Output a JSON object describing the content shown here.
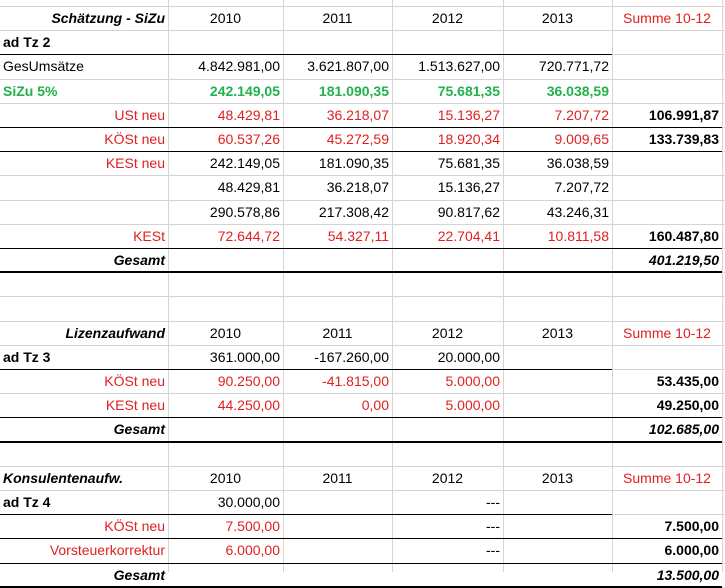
{
  "colors": {
    "red": "#e02020",
    "green": "#22b14c",
    "grid": "#d4d4d4"
  },
  "rows": [
    [
      {
        "c": 0,
        "t": "Schätzung - SiZu",
        "s": "bi",
        "a": "r"
      },
      {
        "c": 1,
        "t": "2010",
        "a": "c"
      },
      {
        "c": 2,
        "t": "2011",
        "a": "c"
      },
      {
        "c": 3,
        "t": "2012",
        "a": "c"
      },
      {
        "c": 4,
        "t": "2013",
        "a": "c"
      },
      {
        "c": 5,
        "t": "Summe 10-12",
        "s": "red",
        "a": "c"
      }
    ],
    [
      {
        "c": 0,
        "t": "ad Tz 2",
        "s": "bold",
        "a": "l"
      }
    ],
    [
      {
        "c": 0,
        "t": "GesUmsätze",
        "a": "l"
      },
      {
        "c": 1,
        "t": "4.842.981,00",
        "a": "r"
      },
      {
        "c": 2,
        "t": "3.621.807,00",
        "a": "r"
      },
      {
        "c": 3,
        "t": "1.513.627,00",
        "a": "r"
      },
      {
        "c": 4,
        "t": "720.771,72",
        "a": "r"
      }
    ],
    [
      {
        "c": 0,
        "t": "SiZu 5%",
        "s": "green",
        "a": "l"
      },
      {
        "c": 1,
        "t": "242.149,05",
        "s": "green",
        "a": "r"
      },
      {
        "c": 2,
        "t": "181.090,35",
        "s": "green",
        "a": "r"
      },
      {
        "c": 3,
        "t": "75.681,35",
        "s": "green",
        "a": "r"
      },
      {
        "c": 4,
        "t": "36.038,59",
        "s": "green",
        "a": "r"
      }
    ],
    [
      {
        "c": 0,
        "t": "USt neu",
        "s": "red",
        "a": "r"
      },
      {
        "c": 1,
        "t": "48.429,81",
        "s": "red",
        "a": "r"
      },
      {
        "c": 2,
        "t": "36.218,07",
        "s": "red",
        "a": "r"
      },
      {
        "c": 3,
        "t": "15.136,27",
        "s": "red",
        "a": "r"
      },
      {
        "c": 4,
        "t": "7.207,72",
        "s": "red",
        "a": "r"
      },
      {
        "c": 5,
        "t": "106.991,87",
        "s": "bold",
        "a": "r"
      }
    ],
    [
      {
        "c": 0,
        "t": "KÖSt neu",
        "s": "red",
        "a": "r"
      },
      {
        "c": 1,
        "t": "60.537,26",
        "s": "red",
        "a": "r"
      },
      {
        "c": 2,
        "t": "45.272,59",
        "s": "red",
        "a": "r"
      },
      {
        "c": 3,
        "t": "18.920,34",
        "s": "red",
        "a": "r"
      },
      {
        "c": 4,
        "t": "9.009,65",
        "s": "red",
        "a": "r"
      },
      {
        "c": 5,
        "t": "133.739,83",
        "s": "bold",
        "a": "r"
      }
    ],
    [
      {
        "c": 0,
        "t": "KESt neu",
        "s": "red",
        "a": "r"
      },
      {
        "c": 1,
        "t": "242.149,05",
        "a": "r"
      },
      {
        "c": 2,
        "t": "181.090,35",
        "a": "r"
      },
      {
        "c": 3,
        "t": "75.681,35",
        "a": "r"
      },
      {
        "c": 4,
        "t": "36.038,59",
        "a": "r"
      }
    ],
    [
      {
        "c": 1,
        "t": "48.429,81",
        "a": "r"
      },
      {
        "c": 2,
        "t": "36.218,07",
        "a": "r"
      },
      {
        "c": 3,
        "t": "15.136,27",
        "a": "r"
      },
      {
        "c": 4,
        "t": "7.207,72",
        "a": "r"
      }
    ],
    [
      {
        "c": 1,
        "t": "290.578,86",
        "a": "r"
      },
      {
        "c": 2,
        "t": "217.308,42",
        "a": "r"
      },
      {
        "c": 3,
        "t": "90.817,62",
        "a": "r"
      },
      {
        "c": 4,
        "t": "43.246,31",
        "a": "r"
      }
    ],
    [
      {
        "c": 0,
        "t": "KESt",
        "s": "red",
        "a": "r"
      },
      {
        "c": 1,
        "t": "72.644,72",
        "s": "red",
        "a": "r"
      },
      {
        "c": 2,
        "t": "54.327,11",
        "s": "red",
        "a": "r"
      },
      {
        "c": 3,
        "t": "22.704,41",
        "s": "red",
        "a": "r"
      },
      {
        "c": 4,
        "t": "10.811,58",
        "s": "red",
        "a": "r"
      },
      {
        "c": 5,
        "t": "160.487,80",
        "s": "bold",
        "a": "r"
      }
    ],
    [
      {
        "c": 0,
        "t": "Gesamt",
        "s": "bi",
        "a": "r"
      },
      {
        "c": 5,
        "t": "401.219,50",
        "s": "bi",
        "a": "r"
      }
    ],
    [],
    [],
    [
      {
        "c": 0,
        "t": "Lizenzaufwand",
        "s": "bi",
        "a": "r"
      },
      {
        "c": 1,
        "t": "2010",
        "a": "c"
      },
      {
        "c": 2,
        "t": "2011",
        "a": "c"
      },
      {
        "c": 3,
        "t": "2012",
        "a": "c"
      },
      {
        "c": 4,
        "t": "2013",
        "a": "c"
      },
      {
        "c": 5,
        "t": "Summe 10-12",
        "s": "red",
        "a": "c"
      }
    ],
    [
      {
        "c": 0,
        "t": "ad Tz 3",
        "s": "bold",
        "a": "l"
      },
      {
        "c": 1,
        "t": "361.000,00",
        "a": "r"
      },
      {
        "c": 2,
        "t": "-167.260,00",
        "a": "r"
      },
      {
        "c": 3,
        "t": "20.000,00",
        "a": "r"
      }
    ],
    [
      {
        "c": 0,
        "t": "KÖSt neu",
        "s": "red",
        "a": "r"
      },
      {
        "c": 1,
        "t": "90.250,00",
        "s": "red",
        "a": "r"
      },
      {
        "c": 2,
        "t": "-41.815,00",
        "s": "red",
        "a": "r"
      },
      {
        "c": 3,
        "t": "5.000,00",
        "s": "red",
        "a": "r"
      },
      {
        "c": 5,
        "t": "53.435,00",
        "s": "bold",
        "a": "r"
      }
    ],
    [
      {
        "c": 0,
        "t": "KESt neu",
        "s": "red",
        "a": "r"
      },
      {
        "c": 1,
        "t": "44.250,00",
        "s": "red",
        "a": "r"
      },
      {
        "c": 2,
        "t": "0,00",
        "s": "red",
        "a": "r"
      },
      {
        "c": 3,
        "t": "5.000,00",
        "s": "red",
        "a": "r"
      },
      {
        "c": 5,
        "t": "49.250,00",
        "s": "bold",
        "a": "r"
      }
    ],
    [
      {
        "c": 0,
        "t": "Gesamt",
        "s": "bi",
        "a": "r"
      },
      {
        "c": 5,
        "t": "102.685,00",
        "s": "bi",
        "a": "r"
      }
    ],
    [],
    [
      {
        "c": 0,
        "t": "Konsulentenaufw.",
        "s": "bi",
        "a": "l"
      },
      {
        "c": 1,
        "t": "2010",
        "a": "c"
      },
      {
        "c": 2,
        "t": "2011",
        "a": "c"
      },
      {
        "c": 3,
        "t": "2012",
        "a": "c"
      },
      {
        "c": 4,
        "t": "2013",
        "a": "c"
      },
      {
        "c": 5,
        "t": "Summe 10-12",
        "s": "red",
        "a": "c"
      }
    ],
    [
      {
        "c": 0,
        "t": "ad Tz 4",
        "s": "bold",
        "a": "l"
      },
      {
        "c": 1,
        "t": "30.000,00",
        "a": "r"
      },
      {
        "c": 3,
        "t": "---",
        "a": "r"
      }
    ],
    [
      {
        "c": 0,
        "t": "KÖSt neu",
        "s": "red",
        "a": "r"
      },
      {
        "c": 1,
        "t": "7.500,00",
        "s": "red",
        "a": "r"
      },
      {
        "c": 3,
        "t": "---",
        "a": "r"
      },
      {
        "c": 5,
        "t": "7.500,00",
        "s": "bold",
        "a": "r"
      }
    ],
    [
      {
        "c": 0,
        "t": "Vorsteuerkorrektur",
        "s": "red",
        "a": "r"
      },
      {
        "c": 1,
        "t": "6.000,00",
        "s": "red",
        "a": "r"
      },
      {
        "c": 3,
        "t": "---",
        "a": "r"
      },
      {
        "c": 5,
        "t": "6.000,00",
        "s": "bold",
        "a": "r"
      }
    ],
    [
      {
        "c": 0,
        "t": "Gesamt",
        "s": "bi",
        "a": "r"
      },
      {
        "c": 5,
        "t": "13.500,00",
        "s": "bi",
        "a": "r"
      }
    ]
  ]
}
